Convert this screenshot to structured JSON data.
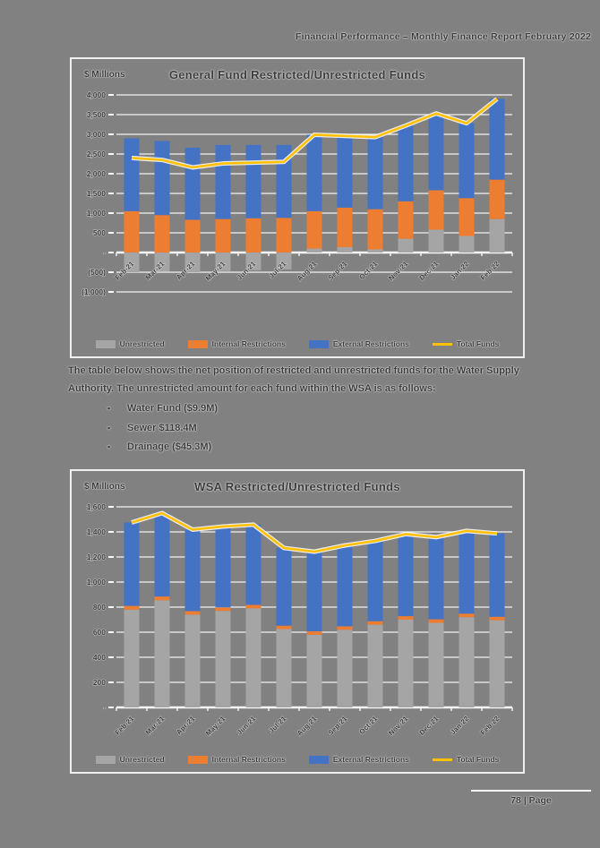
{
  "page": {
    "header": "Financial Performance – Monthly Finance Report February 2022",
    "paragraph": "The table below shows the net position of restricted and unrestricted funds for the Water Supply Authority. The unrestricted amount for each fund within the WSA is as follows:",
    "bullets": [
      "Water Fund ($9.9M)",
      "Sewer $118.4M",
      "Drainage ($45.3M)"
    ],
    "footer": "78 | Page"
  },
  "colors": {
    "page_background": "#818181",
    "unrestricted": "#a5a5a5",
    "internal_restrictions": "#ed7d31",
    "external_restrictions": "#4472c4",
    "total_funds_line": "#ffc000",
    "gridline": "#ffffff"
  },
  "chart_data": [
    {
      "type": "bar",
      "subtype": "stacked-bar-with-line",
      "title": "General Fund Restricted/Unrestricted Funds",
      "ylabel": "$ Millions",
      "xlabel": "",
      "grid": true,
      "legend_position": "bottom",
      "ylim": [
        -1000,
        4000
      ],
      "ytick_step": 500,
      "ytick_labels": [
        "4,000",
        "3,500",
        "3,000",
        "2,500",
        "2,000",
        "1,500",
        "1,000",
        "500",
        "-",
        "(500)",
        "(1,000)"
      ],
      "categories": [
        "Feb-21",
        "Mar-21",
        "Apr-21",
        "May-21",
        "Jun-21",
        "Jul-21",
        "Aug-21",
        "Sep-21",
        "Oct-21",
        "Nov-21",
        "Dec-21",
        "Jan-22",
        "Feb-22"
      ],
      "series": [
        {
          "name": "Unrestricted",
          "color": "#a5a5a5",
          "values": [
            -500,
            -480,
            -500,
            -470,
            -450,
            -430,
            100,
            140,
            80,
            350,
            580,
            420,
            850
          ]
        },
        {
          "name": "Internal Restrictions",
          "color": "#ed7d31",
          "values": [
            1050,
            950,
            830,
            850,
            870,
            880,
            950,
            1000,
            1020,
            950,
            1000,
            960,
            1000
          ]
        },
        {
          "name": "External Restrictions",
          "color": "#4472c4",
          "values": [
            1850,
            1880,
            1830,
            1880,
            1860,
            1850,
            1940,
            1820,
            1830,
            1920,
            1950,
            1900,
            2050
          ]
        }
      ],
      "line": {
        "name": "Total Funds",
        "color": "#ffc000",
        "values": [
          2400,
          2350,
          2160,
          2260,
          2280,
          2300,
          2990,
          2960,
          2930,
          3220,
          3530,
          3280,
          3900
        ]
      }
    },
    {
      "type": "bar",
      "subtype": "stacked-bar-with-line",
      "title": "WSA Restricted/Unrestricted Funds",
      "ylabel": "$ Millions",
      "xlabel": "",
      "grid": true,
      "legend_position": "bottom",
      "ylim": [
        0,
        1600
      ],
      "ytick_step": 200,
      "ytick_labels": [
        "1,600",
        "1,400",
        "1,200",
        "1,000",
        "800",
        "600",
        "400",
        "200",
        "-"
      ],
      "categories": [
        "Feb-21",
        "Mar-21",
        "Apr-21",
        "May-21",
        "Jun-21",
        "Jul-21",
        "Aug-21",
        "Sep-21",
        "Oct-21",
        "Nov-21",
        "Dec-21",
        "Jan-22",
        "Feb-22"
      ],
      "series": [
        {
          "name": "Unrestricted",
          "color": "#a5a5a5",
          "values": [
            780,
            855,
            740,
            770,
            790,
            625,
            580,
            620,
            660,
            700,
            675,
            720,
            695
          ]
        },
        {
          "name": "Internal Restrictions",
          "color": "#ed7d31",
          "values": [
            30,
            30,
            28,
            28,
            28,
            27,
            27,
            27,
            28,
            28,
            28,
            28,
            28
          ]
        },
        {
          "name": "External Restrictions",
          "color": "#4472c4",
          "values": [
            665,
            665,
            650,
            645,
            640,
            620,
            635,
            645,
            640,
            655,
            655,
            660,
            665
          ]
        }
      ],
      "line": {
        "name": "Total Funds",
        "color": "#ffc000",
        "values": [
          1475,
          1550,
          1418,
          1443,
          1458,
          1272,
          1242,
          1292,
          1328,
          1383,
          1358,
          1408,
          1388
        ]
      }
    }
  ]
}
